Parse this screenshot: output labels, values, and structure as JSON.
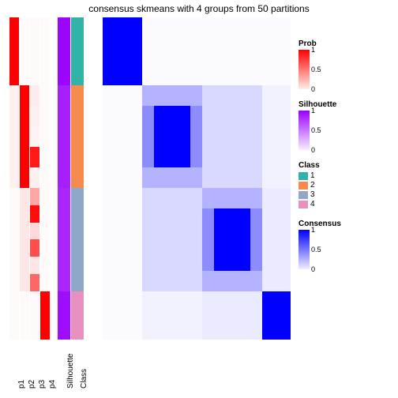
{
  "title": "consensus skmeans with 4 groups from 50 partitions",
  "layout": {
    "heatmap_height": 408,
    "annot_col_widths": {
      "p": 12,
      "silhouette": 16,
      "class": 16
    }
  },
  "groups": {
    "sizes": [
      0.21,
      0.32,
      0.32,
      0.15
    ],
    "class_colors": {
      "1": "#33b2a6",
      "2": "#f58b4c",
      "3": "#8fa7c9",
      "4": "#e890c0"
    }
  },
  "prob_columns": {
    "labels": [
      "p1",
      "p2",
      "p3",
      "p4"
    ],
    "color_low": "#ffffff",
    "color_high": "#ff0000",
    "p1": [
      1.0,
      0.06,
      0.02,
      0.02
    ],
    "p2": [
      0.02,
      1.0,
      0.1,
      0.02
    ],
    "p3": [
      0.02,
      0.1,
      0.55,
      0.02
    ],
    "p4": [
      0.02,
      0.02,
      0.02,
      1.0
    ]
  },
  "prob_noise": {
    "p3_seg2_stripes": [
      0.08,
      0.06,
      0.05,
      0.9,
      0.06
    ],
    "p3_seg3_stripes": [
      0.35,
      0.95,
      0.15,
      0.7,
      0.1,
      0.6
    ]
  },
  "silhouette": {
    "label": "Silhouette",
    "color_low": "#ffffff",
    "color_high": "#9a00ff",
    "values_per_group": [
      0.98,
      0.88,
      0.85,
      0.95
    ]
  },
  "class_col": {
    "label": "Class"
  },
  "consensus": {
    "color_low": "#ffffff",
    "color_high": "#0000ff",
    "matrix": [
      [
        1.0,
        0.02,
        0.02,
        0.02
      ],
      [
        0.02,
        1.0,
        0.15,
        0.05
      ],
      [
        0.02,
        0.15,
        1.0,
        0.08
      ],
      [
        0.02,
        0.05,
        0.08,
        1.0
      ]
    ],
    "shading": {
      "g2_outer": 0.3,
      "g2_inner": 1.0,
      "g2_edge": 0.55,
      "g3_outer": 0.3,
      "g3_inner": 1.0,
      "g3_edge": 0.55
    }
  },
  "legends": {
    "prob": {
      "title": "Prob",
      "ticks": [
        "1",
        "0.5",
        "0"
      ],
      "grad_top": "#ff0000",
      "grad_bot": "#ffeee6"
    },
    "silhouette": {
      "title": "Silhouette",
      "ticks": [
        "1",
        "0.5",
        "0"
      ],
      "grad_top": "#9a00ff",
      "grad_bot": "#f7eeff"
    },
    "class": {
      "title": "Class",
      "items": [
        [
          "1",
          "#33b2a6"
        ],
        [
          "2",
          "#f58b4c"
        ],
        [
          "3",
          "#8fa7c9"
        ],
        [
          "4",
          "#e890c0"
        ]
      ]
    },
    "consensus": {
      "title": "Consensus",
      "ticks": [
        "1",
        "0.5",
        "0"
      ],
      "grad_top": "#0000ff",
      "grad_bot": "#eeeeff"
    }
  }
}
